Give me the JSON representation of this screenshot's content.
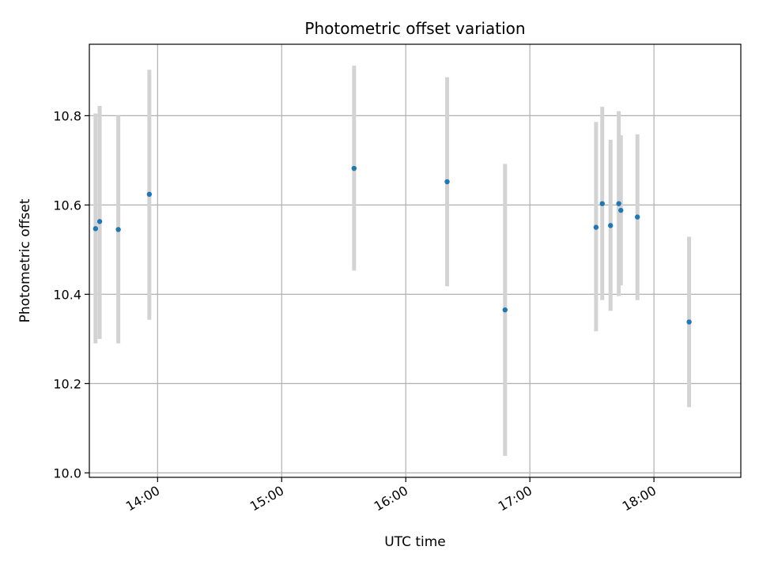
{
  "chart_data": {
    "type": "scatter",
    "title": "Photometric offset variation",
    "xlabel": "UTC time",
    "ylabel": "Photometric offset",
    "x_ticks": [
      "14:00",
      "15:00",
      "16:00",
      "17:00",
      "18:00"
    ],
    "x_tick_times": [
      "14:00",
      "15:00",
      "16:00",
      "17:00",
      "18:00"
    ],
    "y_ticks": [
      "10.0",
      "10.2",
      "10.4",
      "10.6",
      "10.8"
    ],
    "y_tick_values": [
      10.0,
      10.2,
      10.4,
      10.6,
      10.8
    ],
    "xlim": [
      "13:27",
      "18:42"
    ],
    "ylim": [
      9.99,
      10.96
    ],
    "grid": true,
    "legend": "none",
    "colors": {
      "marker": "#1f77b4",
      "errorbar": "#d3d3d3",
      "grid": "#b0b0b0"
    },
    "points": [
      {
        "time": "13:30",
        "value": 10.547,
        "err_low": 10.29,
        "err_high": 10.805
      },
      {
        "time": "13:32",
        "value": 10.563,
        "err_low": 10.3,
        "err_high": 10.822
      },
      {
        "time": "13:41",
        "value": 10.545,
        "err_low": 10.29,
        "err_high": 10.8
      },
      {
        "time": "13:56",
        "value": 10.624,
        "err_low": 10.343,
        "err_high": 10.903
      },
      {
        "time": "15:35",
        "value": 10.682,
        "err_low": 10.453,
        "err_high": 10.912
      },
      {
        "time": "16:20",
        "value": 10.652,
        "err_low": 10.418,
        "err_high": 10.886
      },
      {
        "time": "16:48",
        "value": 10.365,
        "err_low": 10.038,
        "err_high": 10.692
      },
      {
        "time": "17:32",
        "value": 10.55,
        "err_low": 10.317,
        "err_high": 10.786
      },
      {
        "time": "17:35",
        "value": 10.603,
        "err_low": 10.387,
        "err_high": 10.82
      },
      {
        "time": "17:39",
        "value": 10.554,
        "err_low": 10.363,
        "err_high": 10.746
      },
      {
        "time": "17:43",
        "value": 10.603,
        "err_low": 10.396,
        "err_high": 10.81
      },
      {
        "time": "17:44",
        "value": 10.588,
        "err_low": 10.42,
        "err_high": 10.756
      },
      {
        "time": "17:52",
        "value": 10.573,
        "err_low": 10.387,
        "err_high": 10.758
      },
      {
        "time": "18:17",
        "value": 10.338,
        "err_low": 10.147,
        "err_high": 10.529
      }
    ]
  }
}
